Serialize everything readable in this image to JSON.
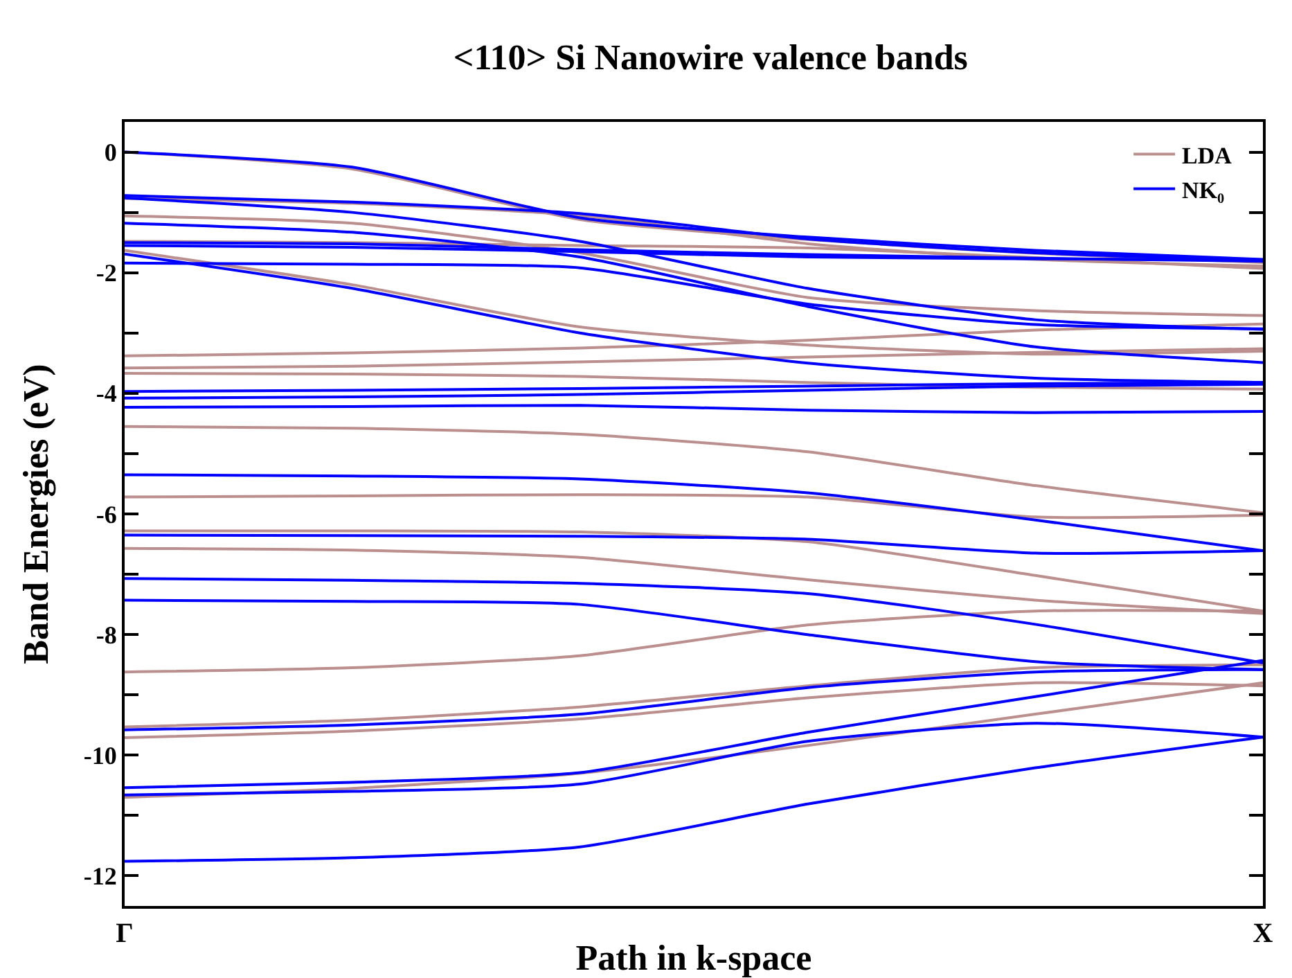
{
  "chart_data": {
    "type": "line",
    "title": "<110> Si Nanowire valence bands",
    "xlabel": "Path in k-space",
    "ylabel": "Band Energies (eV)",
    "categories": [
      "Γ",
      null,
      null,
      null,
      null,
      "X"
    ],
    "ylim": [
      -12.5,
      0.5
    ],
    "yticks": [
      {
        "value": -12,
        "label": "-12"
      },
      {
        "value": -11,
        "label": null
      },
      {
        "value": -10,
        "label": "-10"
      },
      {
        "value": -9,
        "label": null
      },
      {
        "value": -8,
        "label": "-8"
      },
      {
        "value": -7,
        "label": null
      },
      {
        "value": -6,
        "label": "-6"
      },
      {
        "value": -5,
        "label": null
      },
      {
        "value": -4,
        "label": "-4"
      },
      {
        "value": -3,
        "label": null
      },
      {
        "value": -2,
        "label": "-2"
      },
      {
        "value": -1,
        "label": null
      },
      {
        "value": 0,
        "label": "0"
      }
    ],
    "grid": false,
    "legend": "top right",
    "marker": "none",
    "line_style": "solid",
    "series": [
      {
        "name": "LDA",
        "color": "#bc8f8f",
        "values": [
          0,
          -0.28,
          -1.12,
          -1.45,
          -1.68,
          -1.83
        ]
      },
      {
        "color": "#bc8f8f",
        "values": [
          -0.77,
          -0.85,
          -1.05,
          -1.52,
          -1.78,
          -1.89
        ]
      },
      {
        "color": "#bc8f8f",
        "values": [
          -1.06,
          -1.18,
          -1.67,
          -2.41,
          -2.63,
          -2.71
        ]
      },
      {
        "color": "#bc8f8f",
        "values": [
          -1.48,
          -1.5,
          -1.55,
          -1.59,
          -1.75,
          -1.93
        ]
      },
      {
        "color": "#bc8f8f",
        "values": [
          -1.63,
          -2.2,
          -2.9,
          -3.2,
          -3.35,
          -3.3
        ]
      },
      {
        "color": "#bc8f8f",
        "values": [
          -3.38,
          -3.33,
          -3.25,
          -3.12,
          -2.95,
          -2.85
        ]
      },
      {
        "color": "#bc8f8f",
        "values": [
          -3.58,
          -3.55,
          -3.48,
          -3.4,
          -3.32,
          -3.26
        ]
      },
      {
        "color": "#bc8f8f",
        "values": [
          -3.67,
          -3.68,
          -3.72,
          -3.82,
          -3.9,
          -3.93
        ]
      },
      {
        "color": "#bc8f8f",
        "values": [
          -4.55,
          -4.58,
          -4.68,
          -4.97,
          -5.53,
          -5.98
        ]
      },
      {
        "color": "#bc8f8f",
        "values": [
          -5.72,
          -5.7,
          -5.68,
          -5.72,
          -6.05,
          -6.02
        ]
      },
      {
        "color": "#bc8f8f",
        "values": [
          -6.28,
          -6.28,
          -6.3,
          -6.46,
          -7.02,
          -7.61
        ]
      },
      {
        "color": "#bc8f8f",
        "values": [
          -6.57,
          -6.6,
          -6.72,
          -7.09,
          -7.43,
          -7.65
        ]
      },
      {
        "color": "#bc8f8f",
        "values": [
          -8.62,
          -8.55,
          -8.35,
          -7.84,
          -7.61,
          -7.61
        ]
      },
      {
        "color": "#bc8f8f",
        "values": [
          -9.53,
          -9.42,
          -9.2,
          -8.85,
          -8.55,
          -8.5
        ]
      },
      {
        "color": "#bc8f8f",
        "values": [
          -9.71,
          -9.6,
          -9.4,
          -9.05,
          -8.8,
          -8.85
        ]
      },
      {
        "color": "#bc8f8f",
        "values": [
          -10.7,
          -10.55,
          -10.3,
          -9.84,
          -9.32,
          -8.8
        ]
      },
      {
        "name": "NK₀",
        "color": "#0000ff",
        "values": [
          0,
          -0.25,
          -1.09,
          -1.41,
          -1.63,
          -1.78
        ]
      },
      {
        "color": "#0000ff",
        "values": [
          -0.72,
          -0.83,
          -1.02,
          -1.44,
          -1.67,
          -1.8
        ]
      },
      {
        "color": "#0000ff",
        "values": [
          -0.76,
          -1.0,
          -1.48,
          -2.26,
          -2.78,
          -2.94
        ]
      },
      {
        "color": "#0000ff",
        "values": [
          -1.18,
          -1.33,
          -1.74,
          -2.56,
          -3.23,
          -3.49
        ]
      },
      {
        "color": "#0000ff",
        "values": [
          -1.5,
          -1.52,
          -1.62,
          -1.7,
          -1.76,
          -1.81
        ]
      },
      {
        "color": "#0000ff",
        "values": [
          -1.55,
          -1.58,
          -1.65,
          -1.74,
          -1.77,
          -1.79
        ]
      },
      {
        "color": "#0000ff",
        "values": [
          -1.69,
          -2.26,
          -3.0,
          -3.5,
          -3.75,
          -3.82
        ]
      },
      {
        "color": "#0000ff",
        "values": [
          -1.84,
          -1.86,
          -1.92,
          -2.52,
          -2.86,
          -2.93
        ]
      },
      {
        "color": "#0000ff",
        "values": [
          -3.97,
          -3.95,
          -3.92,
          -3.88,
          -3.84,
          -3.82
        ]
      },
      {
        "color": "#0000ff",
        "values": [
          -4.08,
          -4.06,
          -4.02,
          -3.95,
          -3.88,
          -3.85
        ]
      },
      {
        "color": "#0000ff",
        "values": [
          -4.23,
          -4.22,
          -4.2,
          -4.28,
          -4.32,
          -4.3
        ]
      },
      {
        "color": "#0000ff",
        "values": [
          -5.35,
          -5.37,
          -5.42,
          -5.65,
          -6.1,
          -6.61
        ]
      },
      {
        "color": "#0000ff",
        "values": [
          -6.35,
          -6.36,
          -6.37,
          -6.42,
          -6.65,
          -6.61
        ]
      },
      {
        "color": "#0000ff",
        "values": [
          -7.07,
          -7.1,
          -7.15,
          -7.32,
          -7.83,
          -8.47
        ]
      },
      {
        "color": "#0000ff",
        "values": [
          -7.43,
          -7.45,
          -7.5,
          -8.0,
          -8.45,
          -8.58
        ]
      },
      {
        "color": "#0000ff",
        "values": [
          -9.58,
          -9.5,
          -9.32,
          -8.88,
          -8.62,
          -8.58
        ]
      },
      {
        "color": "#0000ff",
        "values": [
          -10.54,
          -10.45,
          -10.29,
          -9.62,
          -9.03,
          -8.43
        ]
      },
      {
        "color": "#0000ff",
        "values": [
          -10.66,
          -10.6,
          -10.48,
          -9.77,
          -9.47,
          -9.7
        ]
      },
      {
        "color": "#0000ff",
        "values": [
          -11.76,
          -11.7,
          -11.52,
          -10.81,
          -10.21,
          -9.7
        ]
      }
    ]
  }
}
